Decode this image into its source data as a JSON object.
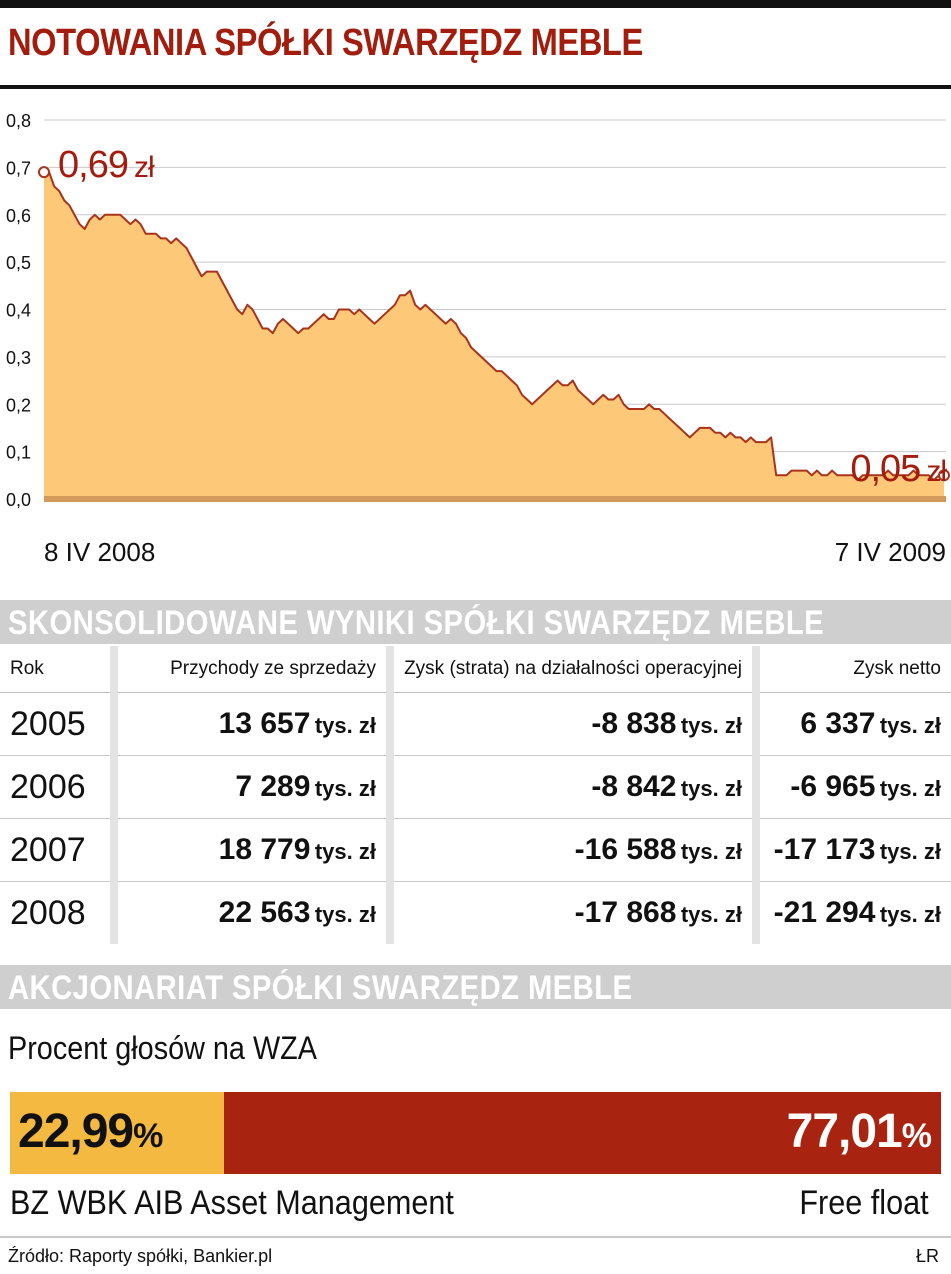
{
  "header": {
    "title": "NOTOWANIA SPÓŁKI SWARZĘDZ MEBLE"
  },
  "chart_data": {
    "type": "area",
    "x_start_label": "8 IV 2008",
    "x_end_label": "7 IV 2009",
    "yticks": [
      "0,0",
      "0,1",
      "0,2",
      "0,3",
      "0,4",
      "0,5",
      "0,6",
      "0,7",
      "0,8"
    ],
    "ylim": [
      0,
      0.8
    ],
    "grid": true,
    "colors": {
      "fill": "#fdc877",
      "line": "#a8321a",
      "accent": "#a21d0e"
    },
    "start_annotation": {
      "value": "0,69",
      "unit": "zł"
    },
    "end_annotation": {
      "value": "0,05",
      "unit": "zł"
    },
    "values": [
      0.69,
      0.69,
      0.66,
      0.65,
      0.63,
      0.62,
      0.6,
      0.58,
      0.57,
      0.59,
      0.6,
      0.59,
      0.6,
      0.6,
      0.6,
      0.6,
      0.59,
      0.58,
      0.59,
      0.58,
      0.56,
      0.56,
      0.56,
      0.55,
      0.55,
      0.54,
      0.55,
      0.54,
      0.53,
      0.51,
      0.49,
      0.47,
      0.48,
      0.48,
      0.48,
      0.46,
      0.44,
      0.42,
      0.4,
      0.39,
      0.41,
      0.4,
      0.38,
      0.36,
      0.36,
      0.35,
      0.37,
      0.38,
      0.37,
      0.36,
      0.35,
      0.36,
      0.36,
      0.37,
      0.38,
      0.39,
      0.38,
      0.38,
      0.4,
      0.4,
      0.4,
      0.39,
      0.4,
      0.39,
      0.38,
      0.37,
      0.38,
      0.39,
      0.4,
      0.41,
      0.43,
      0.43,
      0.44,
      0.41,
      0.4,
      0.41,
      0.4,
      0.39,
      0.38,
      0.37,
      0.38,
      0.37,
      0.35,
      0.34,
      0.32,
      0.31,
      0.3,
      0.29,
      0.28,
      0.27,
      0.27,
      0.26,
      0.25,
      0.24,
      0.22,
      0.21,
      0.2,
      0.21,
      0.22,
      0.23,
      0.24,
      0.25,
      0.24,
      0.24,
      0.25,
      0.23,
      0.22,
      0.21,
      0.2,
      0.21,
      0.22,
      0.21,
      0.21,
      0.22,
      0.2,
      0.19,
      0.19,
      0.19,
      0.19,
      0.2,
      0.19,
      0.19,
      0.18,
      0.17,
      0.16,
      0.15,
      0.14,
      0.13,
      0.14,
      0.15,
      0.15,
      0.15,
      0.14,
      0.14,
      0.13,
      0.14,
      0.13,
      0.13,
      0.12,
      0.13,
      0.12,
      0.12,
      0.12,
      0.13,
      0.05,
      0.05,
      0.05,
      0.06,
      0.06,
      0.06,
      0.06,
      0.05,
      0.06,
      0.05,
      0.05,
      0.06,
      0.05,
      0.05,
      0.05,
      0.05,
      0.04,
      0.05,
      0.05,
      0.05,
      0.05,
      0.05,
      0.06,
      0.05,
      0.05,
      0.05,
      0.05,
      0.06,
      0.05,
      0.05,
      0.05,
      0.04,
      0.05,
      0.05
    ]
  },
  "results": {
    "title": "SKONSOLIDOWANE WYNIKI SPÓŁKI SWARZĘDZ MEBLE",
    "headers": [
      "Rok",
      "Przychody ze sprzedaży",
      "Zysk (strata) na działalności operacyjnej",
      "Zysk netto"
    ],
    "unit": "tys. zł",
    "rows": [
      {
        "year": "2005",
        "revenue": "13 657",
        "operating": "-8 838",
        "net": "6 337"
      },
      {
        "year": "2006",
        "revenue": "7 289",
        "operating": "-8 842",
        "net": "-6 965"
      },
      {
        "year": "2007",
        "revenue": "18 779",
        "operating": "-16 588",
        "net": "-17 173"
      },
      {
        "year": "2008",
        "revenue": "22 563",
        "operating": "-17 868",
        "net": "-21 294"
      }
    ]
  },
  "shareholders": {
    "title": "AKCJONARIAT SPÓŁKI SWARZĘDZ MEBLE",
    "subtitle": "Procent głosów na WZA",
    "percent_sign": "%",
    "holders": [
      {
        "name": "BZ WBK AIB Asset Management",
        "percent": "22,99",
        "share": 22.99,
        "color": "#f4b940"
      },
      {
        "name": "Free float",
        "percent": "77,01",
        "share": 77.01,
        "color": "#a82310"
      }
    ]
  },
  "footer": {
    "source": "Źródło: Raporty spółki, Bankier.pl",
    "author": "ŁR"
  }
}
